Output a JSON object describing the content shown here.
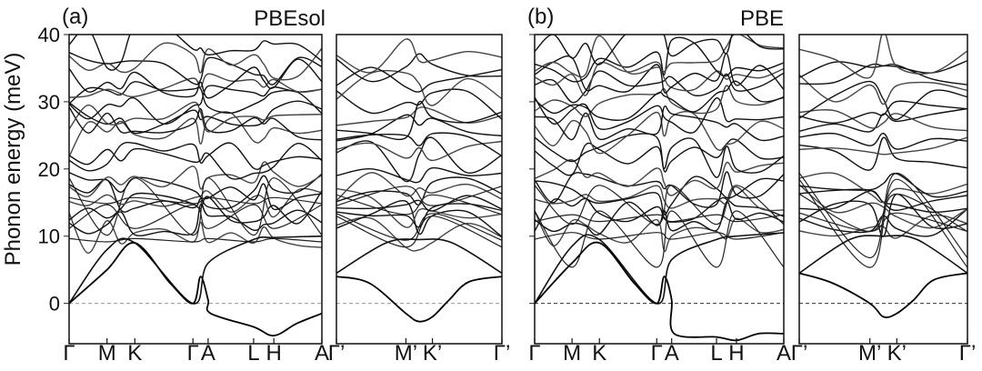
{
  "chart_data": {
    "type": "line",
    "ylabel": "Phonon energy (meV)",
    "ylim": [
      -6,
      40
    ],
    "yticks": [
      0,
      10,
      20,
      30,
      40
    ],
    "zero_line": "dashed",
    "panels": [
      {
        "letter": "(a)",
        "functional": "PBEsol",
        "segments": [
          {
            "kpoints": [
              "Γ",
              "M",
              "K",
              "Γ",
              "A",
              "L",
              "H",
              "A"
            ],
            "kpositions": [
              0,
              0.15,
              0.26,
              0.49,
              0.55,
              0.73,
              0.81,
              1.0
            ],
            "soft_mode": [
              [
                0.0,
                0.0
              ],
              [
                0.15,
                5.0
              ],
              [
                0.26,
                9.0
              ],
              [
                0.4,
                3.0
              ],
              [
                0.49,
                0.0
              ],
              [
                0.52,
                4.0
              ],
              [
                0.55,
                0.5
              ],
              [
                0.56,
                -1.5
              ],
              [
                0.73,
                -3.5
              ],
              [
                0.81,
                -4.8
              ],
              [
                0.9,
                -3.0
              ],
              [
                1.0,
                -1.5
              ]
            ],
            "acoustic": [
              [
                0.0,
                0.0
              ],
              [
                0.15,
                8.0
              ],
              [
                0.26,
                9.0
              ],
              [
                0.49,
                0.0
              ],
              [
                0.55,
                6.0
              ],
              [
                0.73,
                9.5
              ],
              [
                0.81,
                9.8
              ],
              [
                1.0,
                10.0
              ]
            ],
            "band_levels": [
              10.5,
              12.5,
              13.5,
              15.0,
              16.5,
              17.5,
              18.0,
              21.5,
              22.5,
              25.5,
              26.5,
              27.5,
              28.0,
              30.0,
              31.5,
              32.5,
              33.5,
              35.0,
              36.5,
              37.8
            ]
          },
          {
            "kpoints": [
              "Γ’",
              "M’",
              "K’",
              "Γ’"
            ],
            "kpositions": [
              0,
              0.42,
              0.58,
              1.0
            ],
            "soft_mode": [
              [
                0.0,
                4.0
              ],
              [
                0.2,
                3.0
              ],
              [
                0.42,
                -1.5
              ],
              [
                0.5,
                -2.7
              ],
              [
                0.58,
                -2.0
              ],
              [
                0.68,
                0.5
              ],
              [
                0.8,
                3.2
              ],
              [
                1.0,
                4.0
              ]
            ],
            "acoustic": [
              [
                0.0,
                4.5
              ],
              [
                0.3,
                9.0
              ],
              [
                0.5,
                9.5
              ],
              [
                0.7,
                9.0
              ],
              [
                1.0,
                4.5
              ]
            ],
            "band_levels": [
              10.5,
              12.0,
              13.0,
              14.5,
              15.5,
              16.5,
              17.5,
              18.0,
              21.5,
              22.5,
              24.5,
              26.5,
              27.5,
              28.0,
              30.0,
              32.0,
              33.5,
              35.5,
              37.0
            ]
          }
        ]
      },
      {
        "letter": "(b)",
        "functional": "PBE",
        "segments": [
          {
            "kpoints": [
              "Γ",
              "M",
              "K",
              "Γ",
              "A",
              "L",
              "H",
              "A"
            ],
            "kpositions": [
              0,
              0.15,
              0.26,
              0.49,
              0.55,
              0.73,
              0.81,
              1.0
            ],
            "soft_mode": [
              [
                0.0,
                0.0
              ],
              [
                0.15,
                6.0
              ],
              [
                0.26,
                9.0
              ],
              [
                0.4,
                3.0
              ],
              [
                0.49,
                0.0
              ],
              [
                0.52,
                4.0
              ],
              [
                0.55,
                0.5
              ],
              [
                0.56,
                -4.5
              ],
              [
                0.73,
                -5.0
              ],
              [
                0.81,
                -5.5
              ],
              [
                0.9,
                -4.5
              ],
              [
                1.0,
                -4.5
              ]
            ],
            "acoustic": [
              [
                0.0,
                0.0
              ],
              [
                0.15,
                8.5
              ],
              [
                0.26,
                9.5
              ],
              [
                0.49,
                0.0
              ],
              [
                0.55,
                6.5
              ],
              [
                0.73,
                9.5
              ],
              [
                0.81,
                10.0
              ],
              [
                1.0,
                10.5
              ]
            ],
            "band_levels": [
              11.0,
              12.5,
              13.5,
              15.0,
              16.0,
              17.0,
              18.0,
              22.0,
              23.0,
              25.5,
              27.0,
              28.5,
              29.5,
              30.5,
              32.0,
              33.0,
              34.0,
              35.5,
              37.0,
              38.0
            ]
          },
          {
            "kpoints": [
              "Γ’",
              "M’",
              "K’",
              "Γ’"
            ],
            "kpositions": [
              0,
              0.42,
              0.58,
              1.0
            ],
            "soft_mode": [
              [
                0.0,
                4.5
              ],
              [
                0.2,
                3.0
              ],
              [
                0.42,
                0.0
              ],
              [
                0.5,
                -2.0
              ],
              [
                0.58,
                -1.5
              ],
              [
                0.68,
                0.5
              ],
              [
                0.8,
                3.5
              ],
              [
                1.0,
                4.5
              ]
            ],
            "acoustic": [
              [
                0.0,
                4.5
              ],
              [
                0.3,
                9.5
              ],
              [
                0.5,
                10.0
              ],
              [
                0.7,
                9.5
              ],
              [
                1.0,
                4.5
              ]
            ],
            "band_levels": [
              11.0,
              12.0,
              13.0,
              14.5,
              15.5,
              16.5,
              17.5,
              18.0,
              22.0,
              23.0,
              25.0,
              27.0,
              28.0,
              29.0,
              30.5,
              32.0,
              33.5,
              35.5,
              37.0
            ]
          }
        ]
      }
    ]
  }
}
